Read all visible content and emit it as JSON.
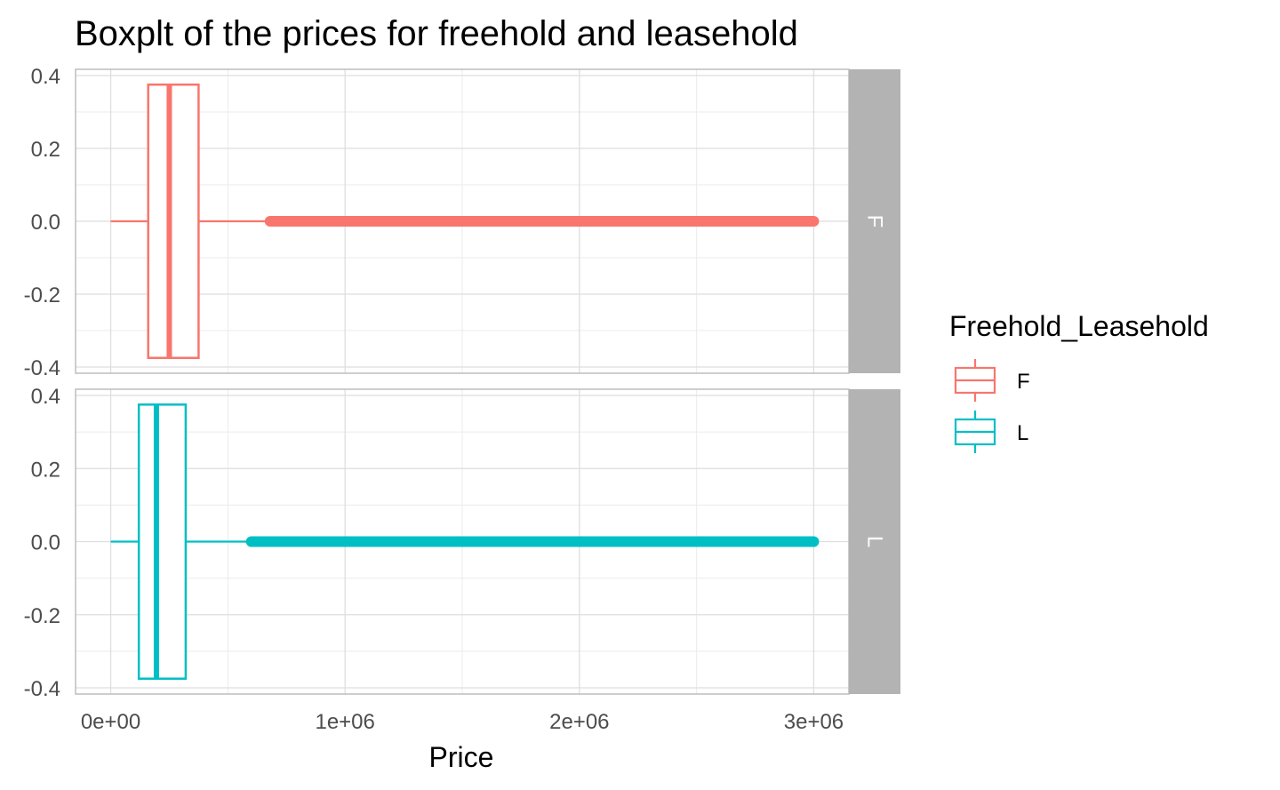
{
  "chart_data": {
    "type": "boxplot",
    "title": "Boxplt of the prices for freehold and leasehold",
    "xlabel": "Price",
    "ylabel": "",
    "xlim": [
      -150000,
      3150000
    ],
    "ylim": [
      -0.4,
      0.4
    ],
    "x_ticks": [
      {
        "value": 0,
        "label": "0e+00"
      },
      {
        "value": 1000000,
        "label": "1e+06"
      },
      {
        "value": 2000000,
        "label": "2e+06"
      },
      {
        "value": 3000000,
        "label": "3e+06"
      }
    ],
    "y_ticks": [
      {
        "value": 0.4,
        "label": "0.4"
      },
      {
        "value": 0.2,
        "label": "0.2"
      },
      {
        "value": 0.0,
        "label": "0.0"
      },
      {
        "value": -0.2,
        "label": "-0.2"
      },
      {
        "value": -0.4,
        "label": "-0.4"
      }
    ],
    "grid": true,
    "facet_by": "Freehold_Leasehold",
    "legend": {
      "title": "Freehold_Leasehold",
      "position": "right"
    },
    "series": [
      {
        "name": "F",
        "color": "#F8766D",
        "min": 0,
        "q1": 160000,
        "median": 250000,
        "q3": 375000,
        "whisker_high": 680000,
        "outliers_from": 680000,
        "outliers_to": 3000000,
        "box_y": [
          -0.375,
          0.375
        ]
      },
      {
        "name": "L",
        "color": "#00BFC4",
        "min": 0,
        "q1": 120000,
        "median": 195000,
        "q3": 320000,
        "whisker_high": 600000,
        "outliers_from": 600000,
        "outliers_to": 3000000,
        "box_y": [
          -0.375,
          0.375
        ]
      }
    ]
  }
}
